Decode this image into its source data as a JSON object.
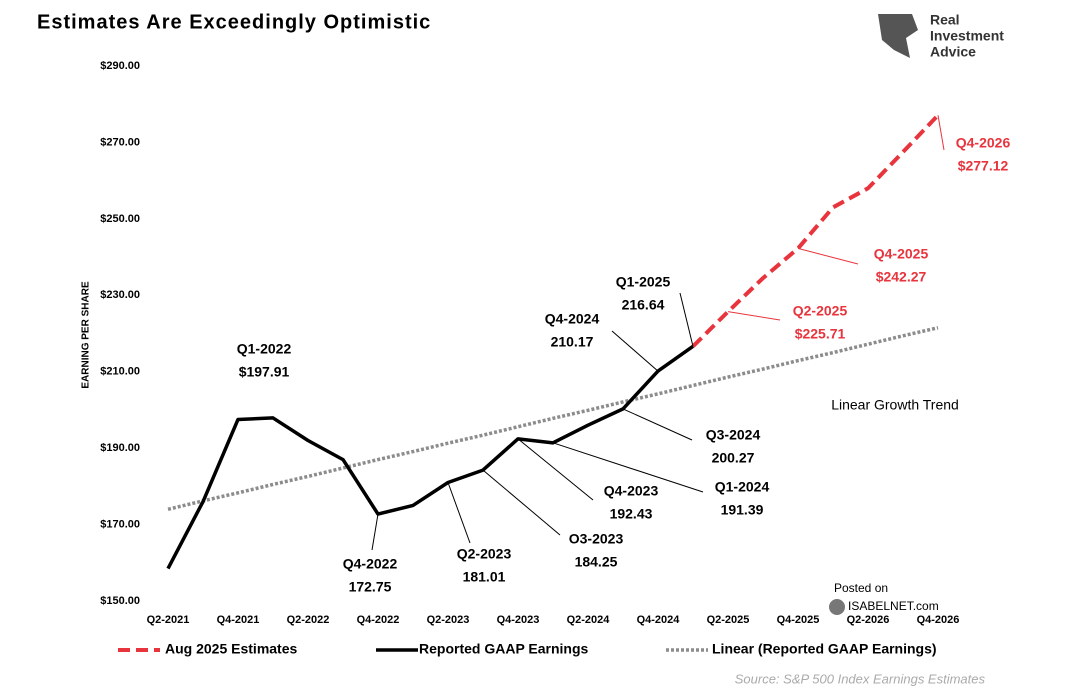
{
  "chart_data": {
    "type": "line",
    "title": "Estimates Are Exceedingly Optimistic",
    "y_label": "EARNING PER SHARE",
    "logo": [
      "Real",
      "Investment",
      "Advice"
    ],
    "posted_on": [
      "Posted on",
      "ISABELNET.com"
    ],
    "source": "Source: S&P 500 Index Earnings Estimates",
    "annotation": "Linear Growth Trend",
    "categories": [
      "Q2-2021",
      null,
      "Q4-2021",
      null,
      "Q2-2022",
      null,
      "Q4-2022",
      null,
      "Q2-2023",
      null,
      "Q4-2023",
      null,
      "Q2-2024",
      null,
      "Q4-2024",
      null,
      "Q2-2025",
      null,
      "Q4-2025",
      null,
      "Q2-2026",
      null,
      "Q4-2026"
    ],
    "ylim": [
      150,
      290
    ],
    "yticks": [
      {
        "value": 150,
        "label": "$150.00"
      },
      {
        "value": 170,
        "label": "$170.00"
      },
      {
        "value": 190,
        "label": "$190.00"
      },
      {
        "value": 210,
        "label": "$210.00"
      },
      {
        "value": 230,
        "label": "$230.00"
      },
      {
        "value": 250,
        "label": "$250.00"
      },
      {
        "value": 270,
        "label": "$270.00"
      },
      {
        "value": 290,
        "label": "$290.00"
      }
    ],
    "grid": false,
    "series": [
      {
        "name": "Aug 2025 Estimates",
        "color": "#e8343c",
        "style": "dashed",
        "values": [
          null,
          null,
          null,
          null,
          null,
          null,
          null,
          null,
          null,
          null,
          null,
          null,
          null,
          null,
          null,
          216.64,
          225.71,
          234.5,
          242.27,
          253,
          258,
          267.5,
          277.12
        ],
        "point_labels": [
          null,
          null,
          null,
          null,
          null,
          null,
          null,
          null,
          null,
          null,
          null,
          null,
          null,
          null,
          null,
          null,
          "Q2-2025",
          null,
          "Q4-2025",
          null,
          null,
          null,
          "Q4-2026"
        ],
        "value_labels": [
          null,
          null,
          null,
          null,
          null,
          null,
          null,
          null,
          null,
          null,
          null,
          null,
          null,
          null,
          null,
          null,
          "$225.71",
          null,
          "$242.27",
          null,
          null,
          null,
          "$277.12"
        ]
      },
      {
        "name": "Reported GAAP Earnings",
        "color": "#000000",
        "style": "solid",
        "values": [
          158.5,
          176,
          197.5,
          197.91,
          192,
          187,
          172.75,
          175,
          181.01,
          184.25,
          192.43,
          191.39,
          196,
          200.27,
          210.17,
          216.64,
          null,
          null,
          null,
          null,
          null,
          null,
          null
        ],
        "point_labels": [
          null,
          null,
          null,
          "Q1-2022",
          null,
          null,
          "Q4-2022",
          null,
          "Q2-2023",
          "O3-2023",
          "Q4-2023",
          "Q1-2024",
          null,
          "Q3-2024",
          "Q4-2024",
          "Q1-2025",
          null,
          null,
          null,
          null,
          null,
          null,
          null
        ],
        "value_labels": [
          null,
          null,
          null,
          "$197.91",
          null,
          null,
          "172.75",
          null,
          "181.01",
          "184.25",
          "192.43",
          "191.39",
          null,
          "200.27",
          "210.17",
          "216.64",
          null,
          null,
          null,
          null,
          null,
          null,
          null
        ]
      },
      {
        "name": "Linear (Reported GAAP Earnings)",
        "color": "#8c8c8c",
        "style": "dotted",
        "values": [
          174,
          176.2,
          178.3,
          180.5,
          182.6,
          184.8,
          187.0,
          189.1,
          191.3,
          193.4,
          195.6,
          197.8,
          199.9,
          202.1,
          204.2,
          206.4,
          208.6,
          210.7,
          212.9,
          215.0,
          217.2,
          219.4,
          221.5
        ]
      }
    ]
  }
}
